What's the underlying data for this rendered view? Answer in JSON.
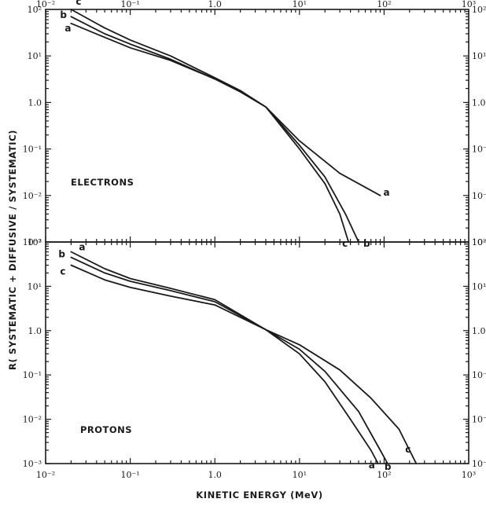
{
  "chart_data": {
    "type": "line",
    "xscale": "log",
    "yscale": "log",
    "xlim": [
      "10⁻²",
      "10³"
    ],
    "ylabel": "R( SYSTEMATIC + DIFFUSIVE / SYSTEMATIC)",
    "xlabel": "KINETIC ENERGY (MeV)",
    "x_ticks": [
      "10⁻²",
      "10⁻¹",
      "1.0",
      "10¹",
      "10²",
      "10³"
    ],
    "y_ticks_left": [
      "10²",
      "10¹",
      "1.0",
      "10⁻¹",
      "10⁻²",
      "10⁻³"
    ],
    "y_ticks_right": [
      "10²",
      "10¹",
      "1.0",
      "10⁻¹",
      "10⁻²",
      "10⁻³"
    ],
    "panels": [
      {
        "label": "ELECTRONS",
        "ylim": [
          0.001,
          100
        ],
        "series": [
          {
            "name": "a",
            "x": [
              0.02,
              0.05,
              0.1,
              0.3,
              1,
              2,
              4,
              10,
              30,
              90
            ],
            "y": [
              50,
              25,
              15,
              8,
              3.2,
              1.7,
              0.8,
              0.15,
              0.03,
              0.01
            ]
          },
          {
            "name": "b",
            "x": [
              0.02,
              0.05,
              0.1,
              0.3,
              1,
              2,
              4,
              10,
              20,
              35,
              50
            ],
            "y": [
              70,
              30,
              18,
              8.5,
              3.2,
              1.7,
              0.8,
              0.12,
              0.025,
              0.004,
              0.001
            ]
          },
          {
            "name": "c",
            "x": [
              0.02,
              0.05,
              0.1,
              0.3,
              1,
              2,
              4,
              10,
              20,
              30,
              38
            ],
            "y": [
              100,
              40,
              22,
              10,
              3.4,
              1.8,
              0.8,
              0.1,
              0.018,
              0.004,
              0.001
            ]
          }
        ],
        "curve_labels": [
          "a",
          "b",
          "c"
        ]
      },
      {
        "label": "PROTONS",
        "ylim": [
          0.001,
          100
        ],
        "series": [
          {
            "name": "a",
            "x": [
              0.02,
              0.05,
              0.1,
              0.3,
              1,
              4,
              10,
              20,
              40,
              70,
              85
            ],
            "y": [
              60,
              25,
              15,
              9,
              5,
              1.05,
              0.3,
              0.07,
              0.01,
              0.002,
              0.001
            ]
          },
          {
            "name": "b",
            "x": [
              0.02,
              0.05,
              0.1,
              0.3,
              1,
              4,
              10,
              20,
              50,
              90,
              110
            ],
            "y": [
              45,
              20,
              13,
              8,
              4.5,
              1.05,
              0.38,
              0.12,
              0.015,
              0.002,
              0.001
            ]
          },
          {
            "name": "c",
            "x": [
              0.02,
              0.05,
              0.1,
              0.3,
              1,
              4,
              10,
              30,
              70,
              150,
              240
            ],
            "y": [
              30,
              14,
              9.5,
              6,
              3.8,
              1.05,
              0.48,
              0.13,
              0.03,
              0.006,
              0.001
            ]
          }
        ],
        "curve_labels": [
          "a",
          "b",
          "c"
        ]
      }
    ],
    "grid": false,
    "legend": "none (curves labelled a, b, c)"
  }
}
